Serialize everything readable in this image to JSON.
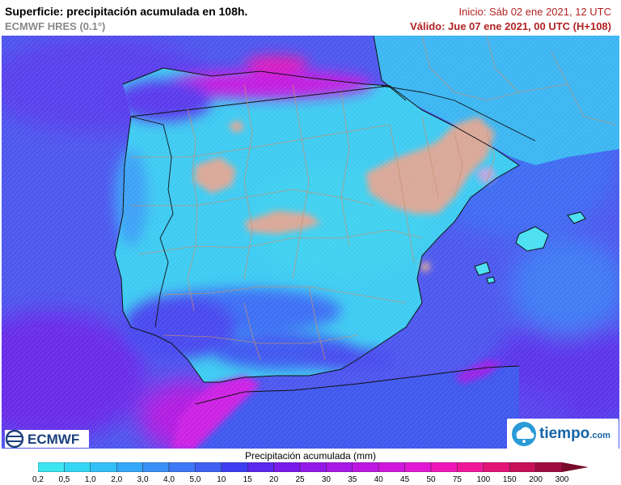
{
  "header": {
    "title": "Superficie: precipitación acumulada en 108h.",
    "model": "ECMWF HRES (0.1°)",
    "init": "Inicio: Sáb 02 ene 2021, 12 UTC",
    "valid": "Válido: Jue 07 ene 2021, 00 UTC (H+108)"
  },
  "logos": {
    "left": "ECMWF",
    "right_name": "tiempo",
    "right_domain": ".com",
    "left_icon": "ecmwf-icon",
    "right_icon": "cloud-drop-icon"
  },
  "legend": {
    "title": "Precipitación acumulada (mm)",
    "ticks": [
      "0,2",
      "0,5",
      "1,0",
      "2,0",
      "3,0",
      "4,0",
      "5,0",
      "10",
      "15",
      "20",
      "25",
      "30",
      "35",
      "40",
      "45",
      "50",
      "75",
      "100",
      "150",
      "200",
      "300"
    ],
    "colors": [
      "#3ce6f0",
      "#35d6f5",
      "#33c0f7",
      "#34a8f8",
      "#3b90f8",
      "#3d78f5",
      "#3f60f2",
      "#3c3cf0",
      "#5a28ee",
      "#7a1aec",
      "#9418ea",
      "#a818e6",
      "#bc18e2",
      "#d018de",
      "#e218d4",
      "#ee18b8",
      "#f0189a",
      "#e21478",
      "#c8105a",
      "#a00c40",
      "#780a2a"
    ]
  },
  "map": {
    "colors": {
      "sea": "#4f5ef0",
      "land_base": "#40c8f2",
      "cantabric": "#d21adc",
      "dry": "#d6a89a",
      "south": "#4048ee",
      "magenta": "#cc20e6"
    }
  }
}
